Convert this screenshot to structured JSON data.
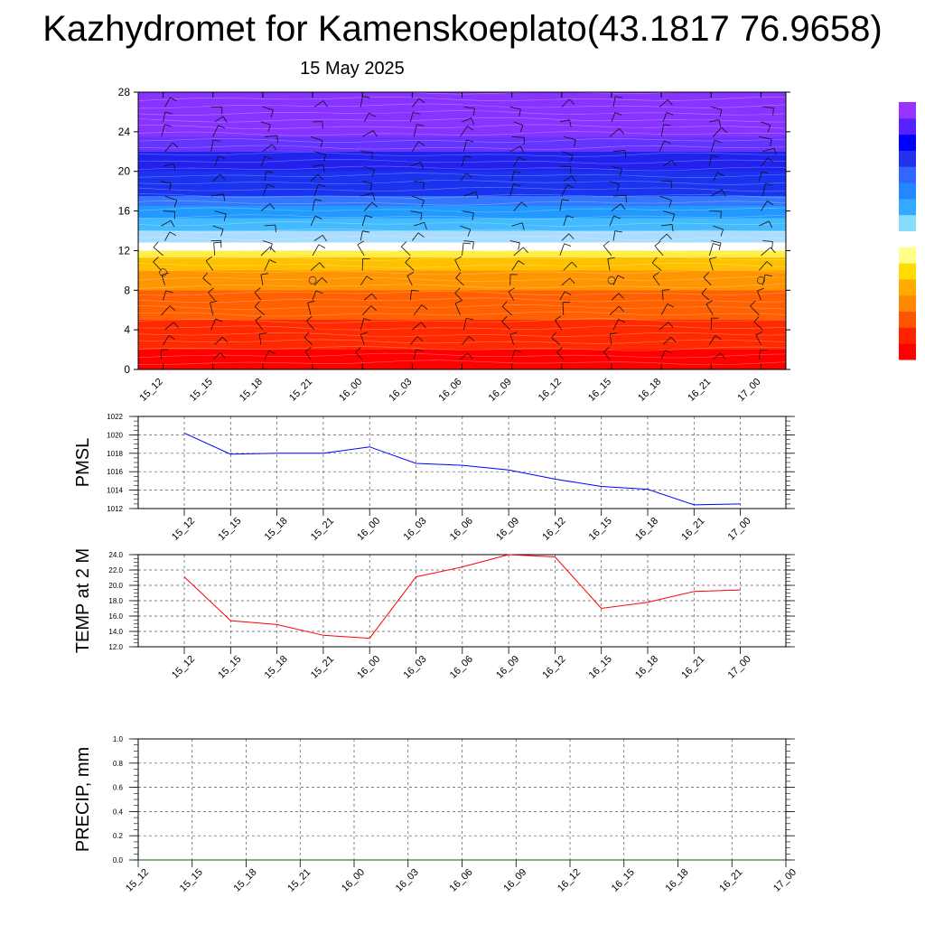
{
  "title": "Kazhydromet for Kamenskoeplato(43.1817 76.9658)",
  "date": "15 May 2025",
  "colors": {
    "pmsl_line": "#0000ff",
    "temp_line": "#ff0000",
    "precip_line": "#006400",
    "grid": "#555555"
  },
  "chart_data": [
    {
      "type": "heatmap",
      "title": "",
      "xlabel": "",
      "ylabel": "",
      "x_ticks": [
        "15_12",
        "15_15",
        "15_18",
        "15_21",
        "16_00",
        "16_03",
        "16_06",
        "16_09",
        "16_12",
        "16_15",
        "16_18",
        "16_21",
        "17_00"
      ],
      "y_ticks": [
        0,
        4,
        8,
        12,
        16,
        20,
        24,
        28
      ],
      "ylim": [
        0,
        28
      ],
      "color_scale": [
        "#ff0000",
        "#ff3300",
        "#ff6600",
        "#ff9900",
        "#ffcc00",
        "#ffff66",
        "#ffffff",
        "#aaddff",
        "#33aaff",
        "#3366ff",
        "#0000ff",
        "#3300ee",
        "#8833ff"
      ],
      "colorbar_colors": [
        "#ff0000",
        "#ff2200",
        "#ff5500",
        "#ff8800",
        "#ffaa00",
        "#ffdd00",
        "#ffff88",
        "#ffffff",
        "#88ddff",
        "#33aaff",
        "#2288ff",
        "#3366ff",
        "#2233ee",
        "#0000ff",
        "#5522ff",
        "#9933ff"
      ],
      "bands": [
        {
          "from": 0,
          "to": 2,
          "color": "#ff0000"
        },
        {
          "from": 2,
          "to": 5,
          "color": "#ff2a00"
        },
        {
          "from": 5,
          "to": 8,
          "color": "#ff6000"
        },
        {
          "from": 8,
          "to": 10,
          "color": "#ff9500"
        },
        {
          "from": 10,
          "to": 11.3,
          "color": "#ffc000"
        },
        {
          "from": 11.3,
          "to": 12,
          "color": "#ffee44"
        },
        {
          "from": 12,
          "to": 12.8,
          "color": "#ffffff"
        },
        {
          "from": 12.8,
          "to": 14,
          "color": "#aaddff"
        },
        {
          "from": 14,
          "to": 15.3,
          "color": "#44bbff"
        },
        {
          "from": 15.3,
          "to": 16.5,
          "color": "#2299ff"
        },
        {
          "from": 16.5,
          "to": 17.5,
          "color": "#3377ff"
        },
        {
          "from": 17.5,
          "to": 20,
          "color": "#1a33ee"
        },
        {
          "from": 20,
          "to": 22,
          "color": "#2222ee"
        },
        {
          "from": 22,
          "to": 23.5,
          "color": "#6633ff"
        },
        {
          "from": 23.5,
          "to": 28,
          "color": "#8833ff"
        }
      ],
      "calm_markers": [
        {
          "x": "15_12",
          "y": 9.8
        },
        {
          "x": "15_21",
          "y": 9.0
        },
        {
          "x": "16_15",
          "y": 9.0
        },
        {
          "x": "17_00",
          "y": 9.0
        }
      ]
    },
    {
      "type": "line",
      "ylabel": "PMSL",
      "ylim": [
        1012,
        1022
      ],
      "y_ticks": [
        1012,
        1014,
        1016,
        1018,
        1020,
        1022
      ],
      "categories": [
        "15_12",
        "15_15",
        "15_18",
        "15_21",
        "16_00",
        "16_03",
        "16_06",
        "16_09",
        "16_12",
        "16_15",
        "16_18",
        "16_21",
        "17_00"
      ],
      "values": [
        1020.2,
        1017.9,
        1018.0,
        1018.0,
        1018.7,
        1016.9,
        1016.7,
        1016.2,
        1015.2,
        1014.4,
        1014.1,
        1012.4,
        1012.5
      ]
    },
    {
      "type": "line",
      "ylabel": "TEMP at 2 M",
      "ylim": [
        12.0,
        24.0
      ],
      "y_ticks": [
        "12.0",
        "14.0",
        "16.0",
        "18.0",
        "20.0",
        "22.0",
        "24.0"
      ],
      "categories": [
        "15_12",
        "15_15",
        "15_18",
        "15_21",
        "16_00",
        "16_03",
        "16_06",
        "16_09",
        "16_12",
        "16_15",
        "16_18",
        "16_21",
        "17_00"
      ],
      "values": [
        21.1,
        15.4,
        14.9,
        13.5,
        13.1,
        21.1,
        22.4,
        24.0,
        23.7,
        17.0,
        17.8,
        19.2,
        19.4
      ]
    },
    {
      "type": "line",
      "ylabel": "PRECIP, mm",
      "ylim": [
        0,
        1.0
      ],
      "y_ticks": [
        "0.0",
        "0.2",
        "0.4",
        "0.6",
        "0.8",
        "1.0"
      ],
      "categories": [
        "15_12",
        "15_15",
        "15_18",
        "15_21",
        "16_00",
        "16_03",
        "16_06",
        "16_09",
        "16_12",
        "16_15",
        "16_18",
        "16_21",
        "17_00"
      ],
      "values": [
        0,
        0,
        0,
        0,
        0,
        0,
        0,
        0,
        0,
        0,
        0,
        0,
        0
      ]
    }
  ]
}
